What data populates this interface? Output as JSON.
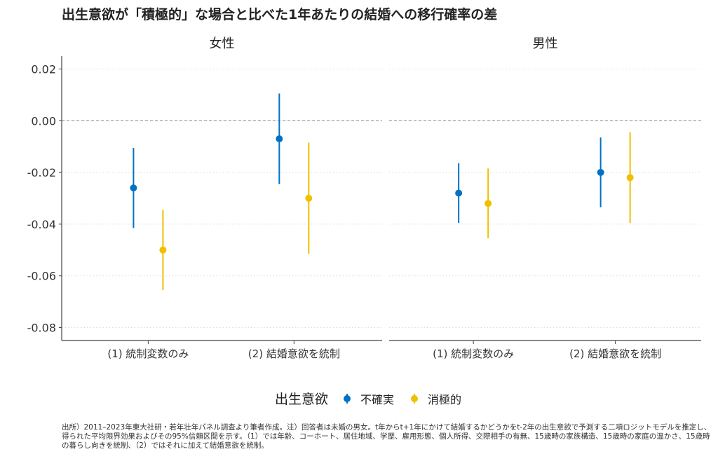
{
  "chart_data": {
    "type": "scatter",
    "title": "出生意欲が「積極的」な場合と比べた1年あたりの結婚への移行確率の差",
    "facets": [
      "女性",
      "男性"
    ],
    "categories": [
      "(1) 統制変数のみ",
      "(2) 結婚意欲を統制"
    ],
    "ylim": [
      -0.085,
      0.025
    ],
    "yticks": [
      0.02,
      0.0,
      -0.02,
      -0.04,
      -0.06,
      -0.08
    ],
    "ytick_labels": [
      "0.02",
      "0.00",
      "-0.02",
      "-0.04",
      "-0.06",
      "-0.08"
    ],
    "reference_line": 0,
    "grid": true,
    "legend": {
      "title": "出生意欲",
      "placement": "bottom"
    },
    "series": [
      {
        "name": "不確実",
        "color": "#0072c6",
        "values": {
          "女性": [
            {
              "est": -0.026,
              "lo": -0.0415,
              "hi": -0.0105
            },
            {
              "est": -0.007,
              "lo": -0.0245,
              "hi": 0.0105
            }
          ],
          "男性": [
            {
              "est": -0.028,
              "lo": -0.0395,
              "hi": -0.0165
            },
            {
              "est": -0.02,
              "lo": -0.0335,
              "hi": -0.0065
            }
          ]
        }
      },
      {
        "name": "消極的",
        "color": "#f0c000",
        "values": {
          "女性": [
            {
              "est": -0.05,
              "lo": -0.0655,
              "hi": -0.0345
            },
            {
              "est": -0.03,
              "lo": -0.0515,
              "hi": -0.0085
            }
          ],
          "男性": [
            {
              "est": -0.032,
              "lo": -0.0455,
              "hi": -0.0185
            },
            {
              "est": -0.022,
              "lo": -0.0395,
              "hi": -0.0045
            }
          ]
        }
      }
    ]
  },
  "note": "出所）2011–2023年東大社研・若年壮年パネル調査より筆者作成。注）回答者は未婚の男女。t年からt+1年にかけて結婚するかどうかをt-2年の出生意欲で予測する二項ロジットモデルを推定し、得られた平均限界効果およびその95%信頼区間を示す。（1）では年齢、コーホート、居住地域、学歴、雇用形態、個人所得、交際相手の有無、15歳時の家族構造、15歳時の家庭の温かさ、15歳時の暮らし向きを統制、（2）ではそれに加えて結婚意欲を統制。"
}
